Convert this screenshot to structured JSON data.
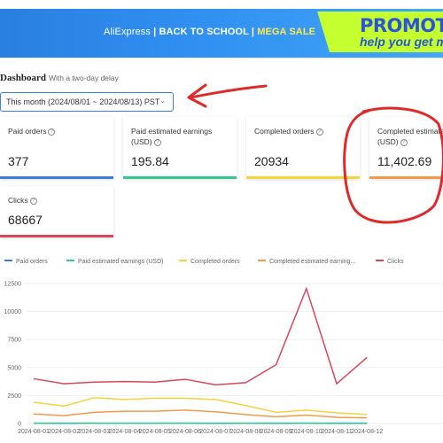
{
  "banner": {
    "brand": "AliExpress",
    "campaign": "BACK TO SCHOOL",
    "separator": "|",
    "mega_sale": "MEGA SALE",
    "promo_title": "PROMOTIO",
    "promo_sub": "help you get mo"
  },
  "dashboard": {
    "title": "Dashboard",
    "subtitle": "With a two-day delay",
    "date_range": "This month (2024/08/01 ~ 2024/08/13) PST"
  },
  "cards": [
    {
      "label": "Paid orders",
      "value": "377",
      "color": "#3b7de0"
    },
    {
      "label": "Paid estimated earnings (USD)",
      "value": "195.84",
      "color": "#36c98e"
    },
    {
      "label": "Completed orders",
      "value": "20934",
      "color": "#f5d33b"
    },
    {
      "label": "Completed estimated earnings (USD)",
      "value": "11,402.69",
      "color": "#f29a4a"
    },
    {
      "label": "Clicks",
      "value": "68667",
      "color": "#d9465a"
    }
  ],
  "legend": [
    {
      "label": "Paid orders",
      "color": "#3b7de0"
    },
    {
      "label": "Paid estimated earnings (USD)",
      "color": "#36c98e"
    },
    {
      "label": "Completed orders",
      "color": "#f5d33b"
    },
    {
      "label": "Completed estimated earning...",
      "color": "#f29a4a"
    },
    {
      "label": "Clicks",
      "color": "#d9465a"
    }
  ],
  "chart_data": {
    "type": "line",
    "x": [
      "2024-08-01",
      "2024-08-02",
      "2024-08-03",
      "2024-08-04",
      "2024-08-05",
      "2024-08-06",
      "2024-08-07",
      "2024-08-08",
      "2024-08-09",
      "2024-08-10",
      "2024-08-11",
      "2024-08-12"
    ],
    "y_ticks": [
      "0",
      "2500",
      "5000",
      "7500",
      "10000",
      "12500"
    ],
    "ylim": [
      0,
      12500
    ],
    "series": [
      {
        "name": "Paid orders",
        "color": "#3b7de0",
        "values": [
          30,
          28,
          32,
          30,
          29,
          31,
          28,
          30,
          27,
          29,
          26,
          28
        ]
      },
      {
        "name": "Paid estimated earnings (USD)",
        "color": "#36c98e",
        "values": [
          15,
          14,
          16,
          15,
          15,
          16,
          14,
          15,
          13,
          15,
          13,
          14
        ]
      },
      {
        "name": "Completed orders",
        "color": "#f5d33b",
        "values": [
          1900,
          1550,
          2300,
          2150,
          2250,
          2250,
          2150,
          1600,
          1000,
          1200,
          950,
          800
        ]
      },
      {
        "name": "Completed estimated earning...",
        "color": "#f29a4a",
        "values": [
          850,
          700,
          1000,
          1100,
          1100,
          1200,
          1050,
          800,
          600,
          750,
          550,
          500
        ]
      },
      {
        "name": "Clicks",
        "color": "#d9465a",
        "values": [
          4000,
          3550,
          3700,
          3750,
          3700,
          3950,
          3450,
          3650,
          5250,
          12050,
          3550,
          5900
        ]
      }
    ]
  },
  "annotation_color": "#dd2a2a"
}
